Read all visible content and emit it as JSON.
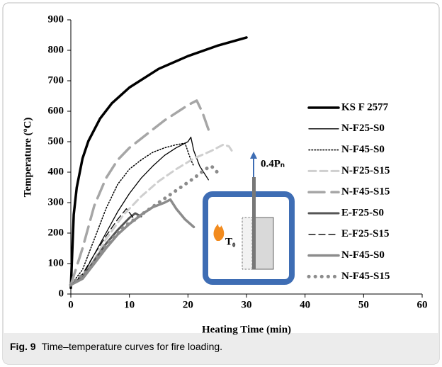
{
  "chart_data": {
    "type": "line",
    "xlabel": "Heating Time (min)",
    "ylabel": "Temperature (ºC)",
    "xlim": [
      0,
      60
    ],
    "xticks": [
      0,
      10,
      20,
      30,
      40,
      50,
      60
    ],
    "ylim": [
      0,
      900
    ],
    "yticks": [
      0,
      100,
      200,
      300,
      400,
      500,
      600,
      700,
      800,
      900
    ],
    "legend": "right",
    "annotations": [
      "0.4Pₙ",
      "T₀"
    ],
    "caption": {
      "label": "Fig. 9",
      "text": "Time–temperature curves for fire loading."
    },
    "series": [
      {
        "name": "KS F 2577",
        "color": "#000000",
        "width": 3.5,
        "dash": "none",
        "x": [
          0,
          0.5,
          1,
          2,
          3,
          5,
          7,
          10,
          15,
          20,
          25,
          30
        ],
        "values": [
          20,
          261,
          349,
          445,
          502,
          576,
          626,
          678,
          739,
          781,
          815,
          842
        ]
      },
      {
        "name": "N-F25-S0",
        "color": "#000000",
        "width": 1.3,
        "dash": "none",
        "x": [
          0,
          2,
          4,
          6,
          8,
          10,
          12,
          14,
          16,
          18,
          20,
          20.5,
          21,
          22,
          23.5
        ],
        "values": [
          30,
          60,
          130,
          200,
          270,
          330,
          380,
          420,
          455,
          480,
          500,
          515,
          470,
          420,
          375
        ]
      },
      {
        "name": "N-F45-S0",
        "color": "#000000",
        "width": 1.5,
        "dash": "1.5 2.5",
        "x": [
          0,
          2,
          4,
          6,
          8,
          10,
          12,
          14,
          16,
          18,
          19.5,
          20.5,
          21
        ],
        "values": [
          30,
          80,
          180,
          280,
          360,
          410,
          440,
          465,
          480,
          490,
          495,
          440,
          420
        ]
      },
      {
        "name": "N-F25-S15",
        "color": "#cfcfcf",
        "width": 3,
        "dash": "10 6",
        "x": [
          0,
          3,
          6,
          9,
          12,
          15,
          18,
          21,
          24,
          26,
          27,
          27.5
        ],
        "values": [
          30,
          80,
          180,
          260,
          320,
          370,
          410,
          445,
          470,
          490,
          485,
          470
        ]
      },
      {
        "name": "N-F45-S15",
        "color": "#a6a6a6",
        "width": 3.5,
        "dash": "22 10",
        "x": [
          0,
          2,
          4,
          6,
          8,
          10,
          12,
          14,
          16,
          18,
          20,
          21.5,
          22.5,
          23.5
        ],
        "values": [
          30,
          150,
          290,
          380,
          440,
          480,
          510,
          540,
          570,
          595,
          620,
          635,
          595,
          540
        ]
      },
      {
        "name": "E-F25-S0",
        "color": "#555555",
        "width": 3,
        "dash": "none",
        "x": [
          0,
          2,
          4,
          6,
          8,
          10,
          11,
          12
        ],
        "values": [
          30,
          55,
          110,
          165,
          210,
          250,
          265,
          255
        ]
      },
      {
        "name": "E-F25-S15",
        "color": "#000000",
        "width": 1.3,
        "dash": "9 5",
        "x": [
          0,
          2,
          4,
          6,
          8,
          9.5,
          10.5,
          11
        ],
        "values": [
          30,
          65,
          130,
          190,
          245,
          280,
          255,
          240
        ]
      },
      {
        "name": "N-F45-S0",
        "color": "#8c8c8c",
        "width": 3.5,
        "dash": "none",
        "x": [
          0,
          2,
          4,
          6,
          8,
          10,
          12,
          14,
          16,
          17,
          18,
          19.5,
          21
        ],
        "values": [
          30,
          50,
          100,
          150,
          195,
          230,
          260,
          285,
          300,
          310,
          280,
          245,
          220
        ]
      },
      {
        "name": "N-F45-S15",
        "color": "#8c8c8c",
        "width": 5,
        "dash": "0.1 9",
        "x": [
          0,
          3,
          6,
          9,
          12,
          15,
          18,
          21,
          23,
          24,
          25
        ],
        "values": [
          30,
          80,
          160,
          220,
          260,
          300,
          340,
          380,
          410,
          420,
          400
        ]
      }
    ]
  }
}
